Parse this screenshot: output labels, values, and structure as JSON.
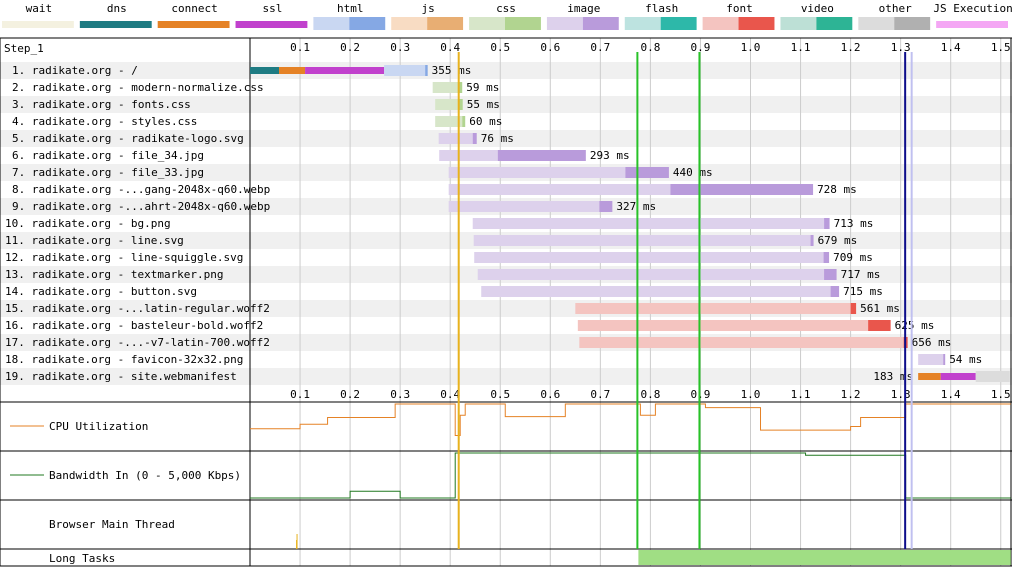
{
  "chart_data": {
    "type": "waterfall",
    "step_label": "Step_1",
    "x_ticks": [
      0.1,
      0.2,
      0.3,
      0.4,
      0.5,
      0.6,
      0.7,
      0.8,
      0.9,
      1.0,
      1.1,
      1.2,
      1.3,
      1.4,
      1.5
    ],
    "x_range": [
      0,
      1.52
    ],
    "legend": [
      {
        "label": "wait",
        "light": "#f4f1e0",
        "dark": "#f4f1e0",
        "split": false
      },
      {
        "label": "dns",
        "light": "#1f7c83",
        "dark": "#1f7c83",
        "split": false
      },
      {
        "label": "connect",
        "light": "#e58226",
        "dark": "#e58226",
        "split": false
      },
      {
        "label": "ssl",
        "light": "#c141cd",
        "dark": "#c141cd",
        "split": false
      },
      {
        "label": "html",
        "light": "#c9d7f2",
        "dark": "#85a8e4",
        "split": true
      },
      {
        "label": "js",
        "light": "#f8dcc3",
        "dark": "#e8ae73",
        "split": true
      },
      {
        "label": "css",
        "light": "#d7e6c9",
        "dark": "#b1d490",
        "split": true
      },
      {
        "label": "image",
        "light": "#ddd1ec",
        "dark": "#b99bdb",
        "split": true
      },
      {
        "label": "flash",
        "light": "#bde3e0",
        "dark": "#2db8a9",
        "split": true
      },
      {
        "label": "font",
        "light": "#f4c4c0",
        "dark": "#e9564c",
        "split": true
      },
      {
        "label": "video",
        "light": "#bde0d6",
        "dark": "#2db495",
        "split": true
      },
      {
        "label": "other",
        "light": "#dcdcdc",
        "dark": "#b0b0b0",
        "split": true
      },
      {
        "label": "JS Execution",
        "light": "#f4a7f4",
        "dark": "#f4a7f4",
        "split": false
      }
    ],
    "requests": [
      {
        "label": "1. radikate.org - /",
        "duration_label": "355 ms",
        "type": "html",
        "phases": [
          {
            "kind": "dns",
            "start": 0.0,
            "end": 0.058
          },
          {
            "kind": "connect",
            "start": 0.058,
            "end": 0.11
          },
          {
            "kind": "ssl",
            "start": 0.11,
            "end": 0.268
          }
        ],
        "start": 0.268,
        "ttfb_end": 0.35,
        "end": 0.355
      },
      {
        "label": "2. radikate.org - modern-normalize.css",
        "duration_label": "59 ms",
        "type": "css",
        "start": 0.365,
        "ttfb_end": 0.415,
        "end": 0.424
      },
      {
        "label": "3. radikate.org - fonts.css",
        "duration_label": "55 ms",
        "type": "css",
        "start": 0.37,
        "ttfb_end": 0.418,
        "end": 0.425
      },
      {
        "label": "4. radikate.org - styles.css",
        "duration_label": "60 ms",
        "type": "css",
        "start": 0.37,
        "ttfb_end": 0.424,
        "end": 0.43
      },
      {
        "label": "5. radikate.org - radikate-logo.svg",
        "duration_label": "76 ms",
        "type": "image",
        "start": 0.377,
        "ttfb_end": 0.445,
        "end": 0.453
      },
      {
        "label": "6. radikate.org - file_34.jpg",
        "duration_label": "293 ms",
        "type": "image",
        "start": 0.378,
        "ttfb_end": 0.495,
        "end": 0.671
      },
      {
        "label": "7. radikate.org - file_33.jpg",
        "duration_label": "440 ms",
        "type": "image",
        "start": 0.397,
        "ttfb_end": 0.75,
        "end": 0.837
      },
      {
        "label": "8. radikate.org -...gang-2048x-q60.webp",
        "duration_label": "728 ms",
        "type": "image",
        "start": 0.397,
        "ttfb_end": 0.84,
        "end": 1.125
      },
      {
        "label": "9. radikate.org -...ahrt-2048x-q60.webp",
        "duration_label": "327 ms",
        "type": "image",
        "start": 0.397,
        "ttfb_end": 0.698,
        "end": 0.724
      },
      {
        "label": "10. radikate.org - bg.png",
        "duration_label": "713 ms",
        "type": "image",
        "start": 0.445,
        "ttfb_end": 1.147,
        "end": 1.158
      },
      {
        "label": "11. radikate.org - line.svg",
        "duration_label": "679 ms",
        "type": "image",
        "start": 0.447,
        "ttfb_end": 1.12,
        "end": 1.126
      },
      {
        "label": "12. radikate.org - line-squiggle.svg",
        "duration_label": "709 ms",
        "type": "image",
        "start": 0.448,
        "ttfb_end": 1.146,
        "end": 1.157
      },
      {
        "label": "13. radikate.org - textmarker.png",
        "duration_label": "717 ms",
        "type": "image",
        "start": 0.455,
        "ttfb_end": 1.147,
        "end": 1.172
      },
      {
        "label": "14. radikate.org - button.svg",
        "duration_label": "715 ms",
        "type": "image",
        "start": 0.462,
        "ttfb_end": 1.16,
        "end": 1.177
      },
      {
        "label": "15. radikate.org -...latin-regular.woff2",
        "duration_label": "561 ms",
        "type": "font",
        "start": 0.65,
        "ttfb_end": 1.2,
        "end": 1.211
      },
      {
        "label": "16. radikate.org - basteleur-bold.woff2",
        "duration_label": "625 ms",
        "type": "font",
        "start": 0.655,
        "ttfb_end": 1.235,
        "end": 1.28
      },
      {
        "label": "17. radikate.org -...-v7-latin-700.woff2",
        "duration_label": "656 ms",
        "type": "font",
        "start": 0.658,
        "ttfb_end": 1.306,
        "end": 1.314
      },
      {
        "label": "18. radikate.org - favicon-32x32.png",
        "duration_label": "54 ms",
        "type": "image",
        "start": 1.335,
        "ttfb_end": 1.385,
        "end": 1.389
      },
      {
        "label": "19. radikate.org - site.webmanifest",
        "duration_label": "183 ms",
        "type": "other",
        "phases": [
          {
            "kind": "connect",
            "start": 1.335,
            "end": 1.38
          },
          {
            "kind": "ssl",
            "start": 1.38,
            "end": 1.45
          }
        ],
        "start": 1.45,
        "ttfb_end": 1.518,
        "end": 1.518,
        "label_left": true
      }
    ],
    "markers": [
      {
        "time": 0.417,
        "color": "#e8b21d"
      },
      {
        "time": 0.774,
        "color": "#28c228"
      },
      {
        "time": 0.898,
        "color": "#28c228"
      },
      {
        "time": 1.309,
        "color": "#0d0d8a"
      },
      {
        "time": 1.322,
        "color": "#c0c0f0"
      }
    ],
    "cpu": {
      "label": "CPU Utilization",
      "color": "#e58226",
      "points": [
        [
          0,
          0.55
        ],
        [
          0.1,
          0.55
        ],
        [
          0.1,
          0.45
        ],
        [
          0.155,
          0.45
        ],
        [
          0.155,
          0.3
        ],
        [
          0.29,
          0.3
        ],
        [
          0.29,
          0.0
        ],
        [
          0.31,
          0.0
        ],
        [
          0.31,
          0.0
        ],
        [
          0.41,
          0.0
        ],
        [
          0.41,
          0.7
        ],
        [
          0.42,
          0.7
        ],
        [
          0.42,
          0.25
        ],
        [
          0.43,
          0.25
        ],
        [
          0.43,
          0.0
        ],
        [
          0.51,
          0.0
        ],
        [
          0.51,
          0.28
        ],
        [
          0.63,
          0.28
        ],
        [
          0.63,
          0.0
        ],
        [
          0.78,
          0.0
        ],
        [
          0.78,
          0.25
        ],
        [
          0.81,
          0.25
        ],
        [
          0.81,
          0.0
        ],
        [
          0.91,
          0.0
        ],
        [
          0.91,
          0.08
        ],
        [
          1.02,
          0.08
        ],
        [
          1.02,
          0.58
        ],
        [
          1.2,
          0.58
        ],
        [
          1.2,
          0.5
        ],
        [
          1.22,
          0.5
        ],
        [
          1.22,
          0.3
        ],
        [
          1.31,
          0.3
        ],
        [
          1.31,
          0.0
        ],
        [
          1.52,
          0.0
        ]
      ]
    },
    "bandwidth": {
      "label": "Bandwidth In (0 - 5,000 Kbps)",
      "color": "#207820",
      "points": [
        [
          0,
          1.0
        ],
        [
          0.2,
          1.0
        ],
        [
          0.2,
          0.85
        ],
        [
          0.3,
          0.85
        ],
        [
          0.3,
          1.0
        ],
        [
          0.41,
          1.0
        ],
        [
          0.41,
          0.0
        ],
        [
          1.11,
          0.0
        ],
        [
          1.11,
          0.05
        ],
        [
          1.31,
          0.05
        ],
        [
          1.31,
          1.0
        ],
        [
          1.52,
          1.0
        ]
      ]
    },
    "main_thread": {
      "label": "Browser Main Thread",
      "spikes": [
        [
          0.093,
          0.3
        ],
        [
          0.094,
          0.5
        ]
      ]
    },
    "long_tasks": {
      "label": "Long Tasks",
      "color": "#a0de84",
      "start": 0.776,
      "end": 1.52
    }
  }
}
